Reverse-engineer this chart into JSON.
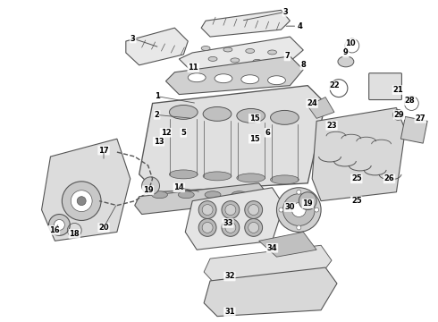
{
  "title": "",
  "background_color": "#ffffff",
  "figsize": [
    4.9,
    3.6
  ],
  "dpi": 100,
  "line_color": "#555555",
  "line_width": 0.8,
  "label_color": "#000000",
  "fc_light": "#e8e8e8",
  "fc_mid": "#d0d0d0",
  "fc_dark": "#c0c0c0",
  "labels": [
    [
      148,
      42,
      "3"
    ],
    [
      320,
      12,
      "3"
    ],
    [
      336,
      28,
      "4"
    ],
    [
      175,
      107,
      "1"
    ],
    [
      175,
      128,
      "2"
    ],
    [
      205,
      148,
      "5"
    ],
    [
      300,
      148,
      "6"
    ],
    [
      322,
      62,
      "7"
    ],
    [
      340,
      72,
      "8"
    ],
    [
      388,
      58,
      "9"
    ],
    [
      393,
      47,
      "10"
    ],
    [
      216,
      75,
      "11"
    ],
    [
      185,
      148,
      "12"
    ],
    [
      177,
      158,
      "13"
    ],
    [
      200,
      210,
      "14"
    ],
    [
      285,
      132,
      "15"
    ],
    [
      285,
      155,
      "15"
    ],
    [
      59,
      258,
      "16"
    ],
    [
      115,
      168,
      "17"
    ],
    [
      82,
      262,
      "18"
    ],
    [
      165,
      213,
      "19"
    ],
    [
      345,
      228,
      "19"
    ],
    [
      115,
      255,
      "20"
    ],
    [
      447,
      100,
      "21"
    ],
    [
      375,
      95,
      "22"
    ],
    [
      372,
      140,
      "23"
    ],
    [
      350,
      115,
      "24"
    ],
    [
      400,
      200,
      "25"
    ],
    [
      400,
      225,
      "25"
    ],
    [
      437,
      200,
      "26"
    ],
    [
      472,
      132,
      "27"
    ],
    [
      460,
      112,
      "28"
    ],
    [
      448,
      128,
      "29"
    ],
    [
      325,
      232,
      "30"
    ],
    [
      257,
      350,
      "31"
    ],
    [
      257,
      310,
      "32"
    ],
    [
      255,
      250,
      "33"
    ],
    [
      305,
      278,
      "34"
    ]
  ]
}
